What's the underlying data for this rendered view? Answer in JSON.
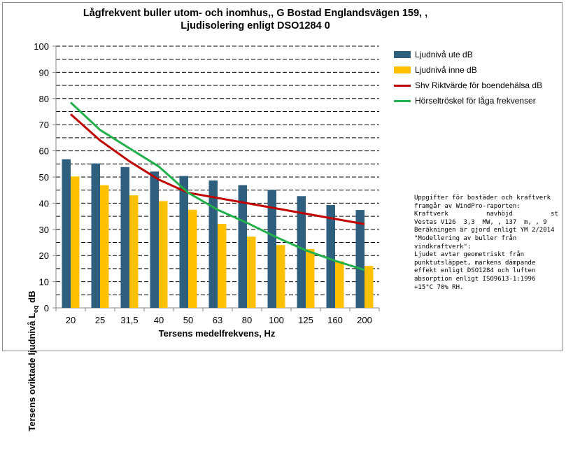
{
  "chart_data": {
    "type": "bar",
    "title": "Lågfrekvent buller utom- och inomhus,, G Bostad Englandsvägen 159, ,\nLjudisolering enligt  DSO1284 0",
    "xlabel": "Tersens medelfrekvens, Hz",
    "ylabel_main": "Tersens oviktade ljudnivå L",
    "ylabel_sub": "eq",
    "ylabel_unit": " dB",
    "ylim": [
      0,
      100
    ],
    "yticks": [
      0,
      10,
      20,
      30,
      40,
      50,
      60,
      70,
      80,
      90,
      100
    ],
    "grid": "dashed horizontal",
    "legend_placement": "right",
    "categories": [
      "20",
      "25",
      "31,5",
      "40",
      "50",
      "63",
      "80",
      "100",
      "125",
      "160",
      "200"
    ],
    "series": [
      {
        "name": "Ljudnivå ute dB",
        "kind": "bar",
        "color": "#2e5f7f",
        "values": [
          56.8,
          55.2,
          53.8,
          52.1,
          50.4,
          48.7,
          46.9,
          45.1,
          42.7,
          39.3,
          37.4
        ]
      },
      {
        "name": "Ljudnivå inne dB",
        "kind": "bar",
        "color": "#ffc000",
        "values": [
          50.2,
          46.9,
          43.0,
          40.8,
          37.5,
          32.1,
          27.2,
          24.0,
          22.5,
          17.8,
          16.0
        ]
      },
      {
        "name": "Shv Riktvärde för boendehälsa dB",
        "kind": "line",
        "color": "#c00000",
        "values": [
          74,
          64,
          56,
          49,
          44,
          42,
          40,
          38,
          36,
          34,
          32
        ]
      },
      {
        "name": "Hörseltröskel för låga frekvenser",
        "kind": "line",
        "color": "#21b04b",
        "values": [
          78.5,
          68,
          61,
          54,
          44,
          37.5,
          32.5,
          27,
          22,
          18,
          14.5
        ]
      }
    ],
    "annotation": "Uppgifter för bostäder och kraftverk\nframgår av WindPro-raporten:\nKraftverk          navhöjd          st\nVestas V126  3,3  MW, , 137  m, , 9\nBeräkningen är gjord enligt YM 2/2014\n\"Modellering av buller från\nvindkraftverk\":\nLjudet avtar geometriskt från\npunktutsläppet, markens dämpande\neffekt enligt DSO1284 och luften\nabsorption enligt ISO9613-1:1996\n+15°C 70% RH."
  }
}
